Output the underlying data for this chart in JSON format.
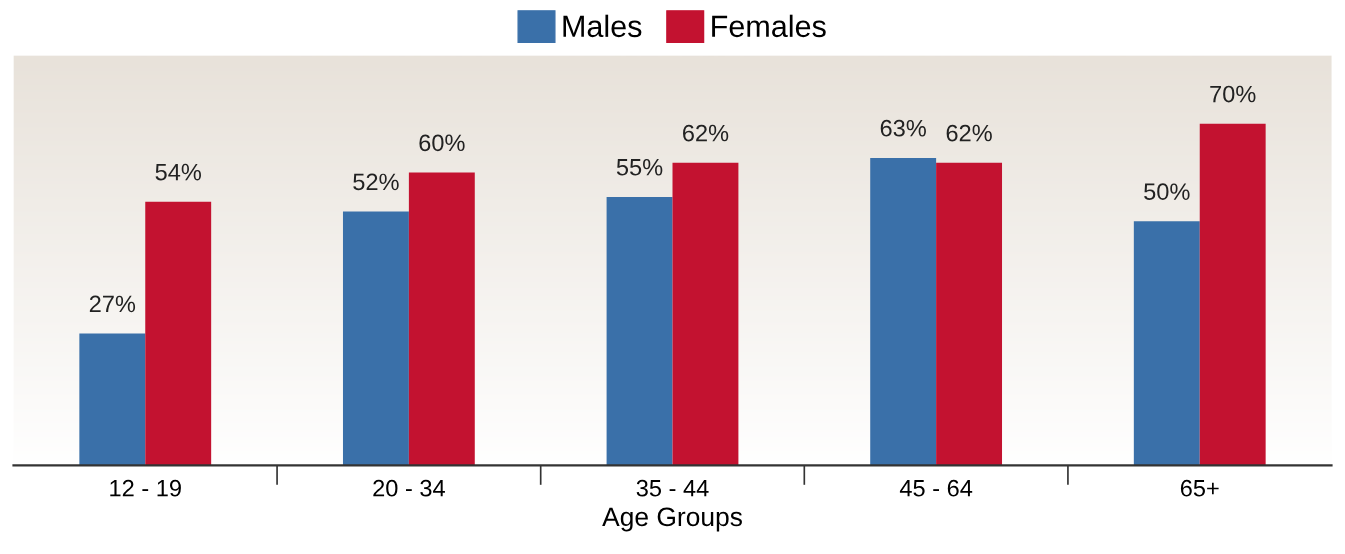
{
  "chart_data": {
    "type": "bar",
    "xlabel": "Age Groups",
    "categories": [
      "12 - 19",
      "20 - 34",
      "35 - 44",
      "45 - 64",
      "65+"
    ],
    "series": [
      {
        "name": "Males",
        "color": "#3a70a9",
        "values": [
          27,
          52,
          55,
          63,
          50
        ],
        "value_labels": [
          "27%",
          "52%",
          "55%",
          "63%",
          "50%"
        ]
      },
      {
        "name": "Females",
        "color": "#c31230",
        "values": [
          54,
          60,
          62,
          62,
          70
        ],
        "value_labels": [
          "54%",
          "60%",
          "62%",
          "62%",
          "70%"
        ]
      }
    ],
    "legend": "top",
    "grid": false
  }
}
